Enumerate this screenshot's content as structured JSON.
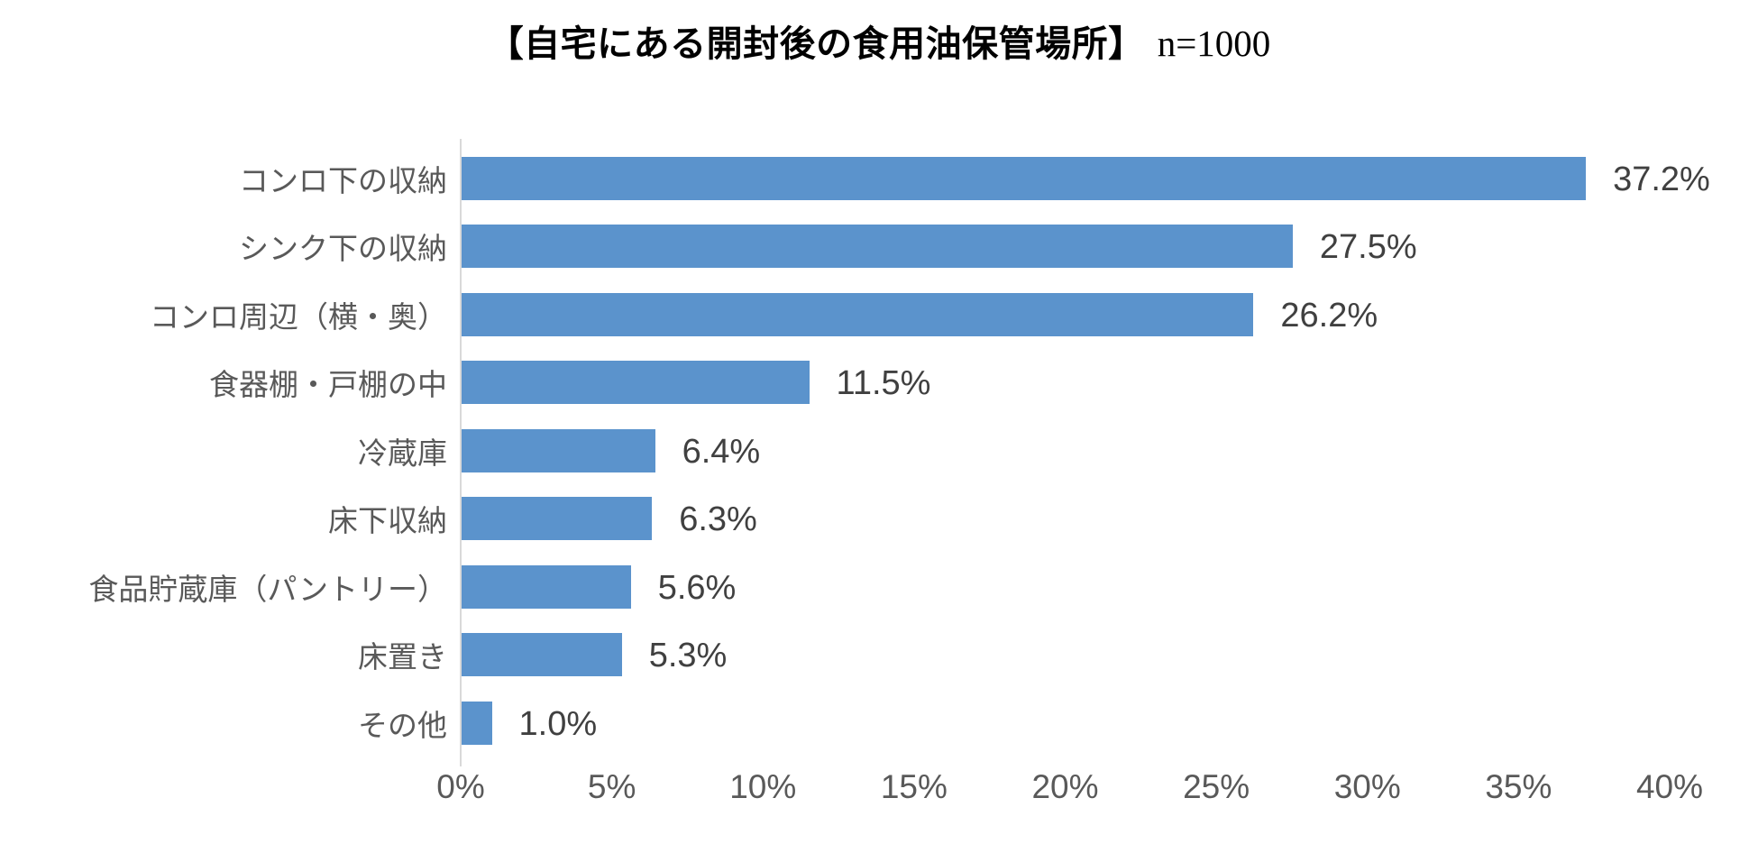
{
  "header": {
    "title": "【自宅にある開封後の食用油保管場所】",
    "sample": "n=1000"
  },
  "chart_data": {
    "type": "bar",
    "orientation": "horizontal",
    "title": "【自宅にある開封後の食用油保管場所】 n=1000",
    "categories": [
      "コンロ下の収納",
      "シンク下の収納",
      "コンロ周辺（横・奥）",
      "食器棚・戸棚の中",
      "冷蔵庫",
      "床下収納",
      "食品貯蔵庫（パントリー）",
      "床置き",
      "その他"
    ],
    "values": [
      37.2,
      27.5,
      26.2,
      11.5,
      6.4,
      6.3,
      5.6,
      5.3,
      1.0
    ],
    "value_labels": [
      "37.2%",
      "27.5%",
      "26.2%",
      "11.5%",
      "6.4%",
      "6.3%",
      "5.6%",
      "5.3%",
      "1.0%"
    ],
    "xlabel": "",
    "ylabel": "",
    "xlim": [
      0,
      40
    ],
    "x_ticks": [
      "0%",
      "5%",
      "10%",
      "15%",
      "20%",
      "25%",
      "30%",
      "35%",
      "40%"
    ],
    "grid": false,
    "legend": false,
    "colors": {
      "bar": "#5b93cc",
      "axis_line": "#d9d9d9",
      "category_text": "#595959",
      "value_text": "#404040",
      "tick_text": "#595959"
    }
  }
}
